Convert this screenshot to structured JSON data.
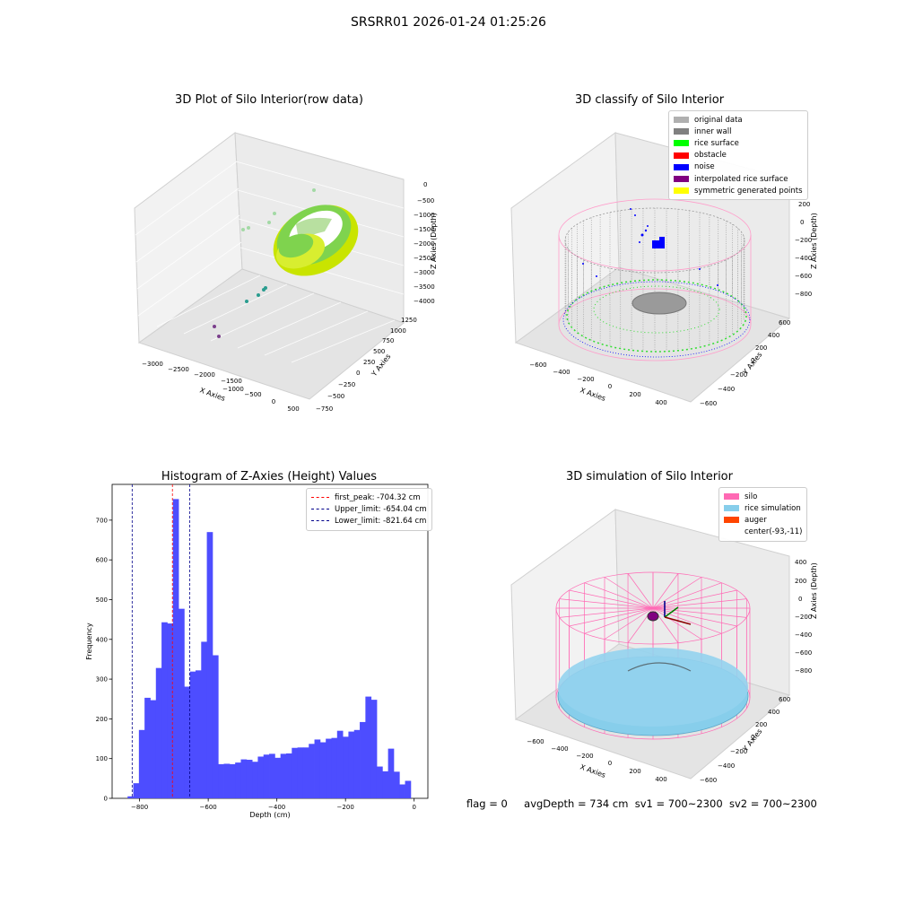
{
  "figure_title": "SRSRR01 2026-01-24 01:25:26",
  "footer": {
    "flag": "flag = 0",
    "avg": "avgDepth = 734 cm",
    "sv1": "sv1 = 700~2300",
    "sv2": "sv2 = 700~2300"
  },
  "colors": {
    "histogram_bars": "#4d4dff",
    "first_peak": "#ff0000",
    "limits": "#00008b",
    "silo": "#ff69b4",
    "rice_simulation": "#87ceeb",
    "auger": "#ff4500",
    "inner_wall": "#808080",
    "rice_surface": "#00ff00",
    "noise": "#0000ff"
  },
  "chart_data": [
    {
      "type": "scatter",
      "title": "3D Plot of Silo Interior(row data)",
      "xlabel": "X Axies",
      "ylabel": "Y Axies",
      "zlabel": "Z Axies (Depth)",
      "x_ticks": [
        "−3000",
        "−2500",
        "−2000",
        "−1500",
        "−1000",
        "−500",
        "0",
        "500"
      ],
      "y_ticks": [
        "−750",
        "−500",
        "−250",
        "0",
        "250",
        "500",
        "750",
        "1000",
        "1250"
      ],
      "z_ticks": [
        "0",
        "−500",
        "−1000",
        "−1500",
        "−2000",
        "−2500",
        "−3000",
        "−3500",
        "−4000"
      ]
    },
    {
      "type": "scatter",
      "title": "3D classify of Silo Interior",
      "xlabel": "X Axies",
      "ylabel": "Y Axies",
      "zlabel": "Z Axies (Depth)",
      "x_ticks": [
        "−600",
        "−400",
        "−200",
        "0",
        "200",
        "400"
      ],
      "y_ticks": [
        "−600",
        "−400",
        "−200",
        "0",
        "200",
        "400",
        "600"
      ],
      "z_ticks": [
        "200",
        "0",
        "−200",
        "−400",
        "−600",
        "−800"
      ],
      "legend": [
        {
          "label": "original data",
          "color": "#b0b0b0"
        },
        {
          "label": "inner wall",
          "color": "#808080"
        },
        {
          "label": "rice surface",
          "color": "#00ff00"
        },
        {
          "label": "obstacle",
          "color": "#ff0000"
        },
        {
          "label": "noise",
          "color": "#0000ff"
        },
        {
          "label": "interpolated rice surface",
          "color": "#800080"
        },
        {
          "label": "symmetric generated points",
          "color": "#ffff00"
        }
      ]
    },
    {
      "type": "bar",
      "title": "Histogram of Z-Axies (Height) Values",
      "xlabel": "Depth (cm)",
      "ylabel": "Frequency",
      "xlim": [
        -880,
        40
      ],
      "ylim": [
        0,
        790
      ],
      "bin_start": -835,
      "bin_width": 16.5,
      "values": [
        5,
        38,
        172,
        253,
        247,
        328,
        443,
        440,
        753,
        477,
        281,
        319,
        322,
        394,
        670,
        360,
        86,
        87,
        86,
        90,
        98,
        97,
        92,
        105,
        110,
        112,
        102,
        112,
        113,
        127,
        128,
        128,
        137,
        148,
        141,
        150,
        152,
        170,
        155,
        168,
        172,
        192,
        256,
        248,
        80,
        68,
        125,
        67,
        35,
        44
      ],
      "x_ticks": [
        -800,
        -600,
        -400,
        -200,
        0
      ],
      "x_tick_labels": [
        "−800",
        "−600",
        "−400",
        "−200",
        "0"
      ],
      "y_ticks": [
        0,
        100,
        200,
        300,
        400,
        500,
        600,
        700
      ],
      "lines": [
        {
          "label": "first_peak: -704.32 cm",
          "x": -704.32,
          "color": "#ff0000"
        },
        {
          "label": "Upper_limit: -654.04 cm",
          "x": -654.04,
          "color": "#00008b"
        },
        {
          "label": "Lower_limit: -821.64 cm",
          "x": -821.64,
          "color": "#00008b"
        }
      ]
    },
    {
      "type": "scatter",
      "title": "3D simulation of Silo Interior",
      "xlabel": "X Axies",
      "ylabel": "Y Axies",
      "zlabel": "Z Axies (Depth)",
      "x_ticks": [
        "−600",
        "−400",
        "−200",
        "0",
        "200",
        "400"
      ],
      "y_ticks": [
        "−600",
        "−400",
        "−200",
        "0",
        "200",
        "400",
        "600"
      ],
      "z_ticks": [
        "400",
        "200",
        "0",
        "−200",
        "−400",
        "−600",
        "−800"
      ],
      "legend": [
        {
          "label": "silo",
          "color": "#ff69b4"
        },
        {
          "label": "rice simulation",
          "color": "#87ceeb"
        },
        {
          "label": "auger",
          "color": "#ff4500"
        },
        {
          "label": "center(-93,-11)",
          "color": ""
        }
      ]
    }
  ]
}
